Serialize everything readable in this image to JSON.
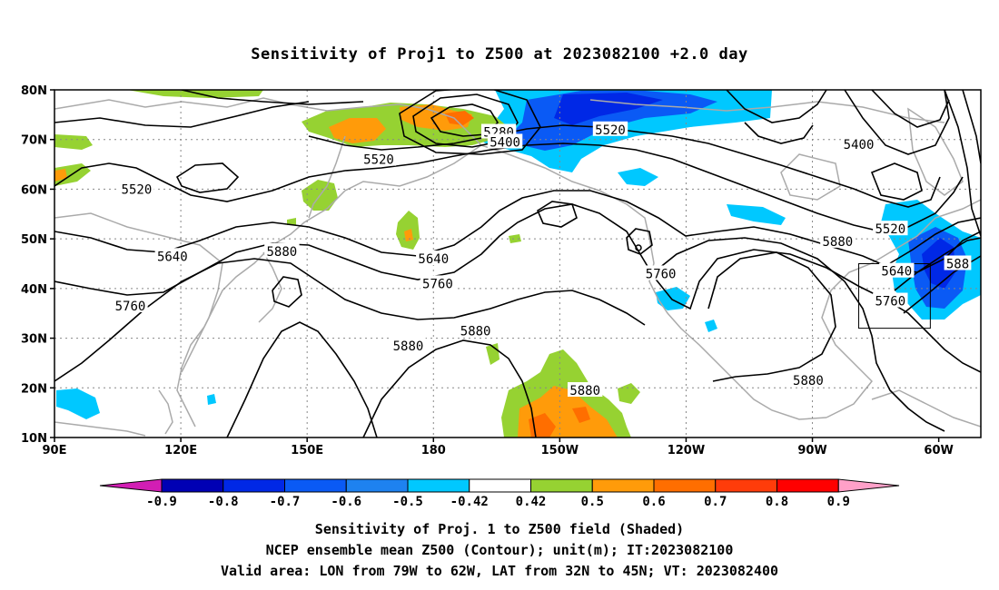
{
  "title": "Sensitivity of Proj1 to Z500 at 2023082100 +2.0 day",
  "lat_labels": [
    "80N",
    "70N",
    "60N",
    "50N",
    "40N",
    "30N",
    "20N",
    "10N"
  ],
  "lon_labels": [
    "90E",
    "120E",
    "150E",
    "180",
    "150W",
    "120W",
    "90W",
    "60W"
  ],
  "contour_labels": [
    {
      "text": "5280",
      "lon": 195.5,
      "lat": 71.5
    },
    {
      "text": "5400",
      "lon": 197,
      "lat": 69.5
    },
    {
      "text": "5520",
      "lon": 167,
      "lat": 66
    },
    {
      "text": "5520",
      "lon": 222,
      "lat": 72
    },
    {
      "text": "5400",
      "lon": 281,
      "lat": 69
    },
    {
      "text": "5520",
      "lon": 109.5,
      "lat": 60
    },
    {
      "text": "5520",
      "lon": 288.5,
      "lat": 52
    },
    {
      "text": "5640",
      "lon": 118,
      "lat": 46.5
    },
    {
      "text": "5640",
      "lon": 180,
      "lat": 46
    },
    {
      "text": "5640",
      "lon": 290,
      "lat": 43.5
    },
    {
      "text": "5760",
      "lon": 108,
      "lat": 36.5
    },
    {
      "text": "5760",
      "lon": 181,
      "lat": 41
    },
    {
      "text": "5760",
      "lon": 234,
      "lat": 43
    },
    {
      "text": "5760",
      "lon": 288.5,
      "lat": 37.5
    },
    {
      "text": "5880",
      "lon": 144,
      "lat": 47.5
    },
    {
      "text": "5880",
      "lon": 276,
      "lat": 49.5
    },
    {
      "text": "5880",
      "lon": 190,
      "lat": 31.5
    },
    {
      "text": "5880",
      "lon": 174,
      "lat": 28.5
    },
    {
      "text": "5880",
      "lon": 216,
      "lat": 19.5
    },
    {
      "text": "5880",
      "lon": 269,
      "lat": 21.5
    },
    {
      "text": "588",
      "lon": 304.5,
      "lat": 45
    }
  ],
  "valid_area": {
    "lon_min": 281,
    "lon_max": 298,
    "lat_min": 32,
    "lat_max": 45
  },
  "colorbar": {
    "ticks": [
      "-0.9",
      "-0.8",
      "-0.7",
      "-0.6",
      "-0.5",
      "-0.42",
      "0.42",
      "0.5",
      "0.6",
      "0.7",
      "0.8",
      "0.9"
    ],
    "colors": [
      "#0000b4",
      "#0028e6",
      "#0a5af5",
      "#1e82f0",
      "#00c8ff",
      "#ffffff",
      "#96d232",
      "#ff9b0a",
      "#ff6e00",
      "#ff3c0a",
      "#ff0000"
    ],
    "low_color": "#d21eb4",
    "high_color": "#ffa0c8"
  },
  "colors": {
    "positive": "#96d232",
    "orange": "#ff9b0a",
    "dark_orange": "#ff6e00",
    "negative_light": "#00c8ff",
    "negative_mid": "#0a5af5",
    "negative_dark": "#0028e6",
    "coast": "#aaaaaa",
    "contour": "#000000"
  },
  "captions": [
    "Sensitivity of Proj. 1 to Z500 field (Shaded)",
    "NCEP ensemble mean Z500 (Contour); unit(m); IT:2023082100",
    "Valid area: LON from 79W to 62W, LAT from 32N to 45N; VT: 2023082400"
  ]
}
